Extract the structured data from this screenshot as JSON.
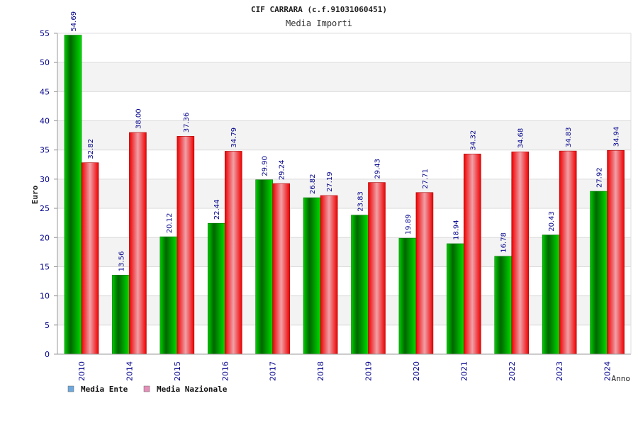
{
  "chart_data": {
    "type": "bar",
    "title": "CIF CARRARA (c.f.91031060451)",
    "subtitle": "Media Importi",
    "xlabel": "Anno",
    "ylabel": "Euro",
    "ylim": [
      0,
      55
    ],
    "yticks": [
      0,
      5,
      10,
      15,
      20,
      25,
      30,
      35,
      40,
      45,
      50,
      55
    ],
    "grid": true,
    "legend_position": "bottom-left",
    "categories": [
      "2010",
      "2014",
      "2015",
      "2016",
      "2017",
      "2018",
      "2019",
      "2020",
      "2021",
      "2022",
      "2023",
      "2024"
    ],
    "series": [
      {
        "name": "Media Ente",
        "color": "#00cc00",
        "legend_color": "#6fa8dc",
        "values": [
          54.69,
          13.56,
          20.12,
          22.44,
          29.9,
          26.82,
          23.83,
          19.89,
          18.94,
          16.78,
          20.43,
          27.92
        ],
        "labels": [
          "54.69",
          "13.56",
          "20.12",
          "22.44",
          "29.90",
          "26.82",
          "23.83",
          "19.89",
          "18.94",
          "16.78",
          "20.43",
          "27.92"
        ]
      },
      {
        "name": "Media Nazionale",
        "color": "#ee0000",
        "legend_color": "#e58fb8",
        "values": [
          32.82,
          38.0,
          37.36,
          34.79,
          29.24,
          27.19,
          29.43,
          27.71,
          34.32,
          34.68,
          34.83,
          34.94
        ],
        "labels": [
          "32.82",
          "38.00",
          "37.36",
          "34.79",
          "29.24",
          "27.19",
          "29.43",
          "27.71",
          "34.32",
          "34.68",
          "34.83",
          "34.94"
        ]
      }
    ]
  }
}
